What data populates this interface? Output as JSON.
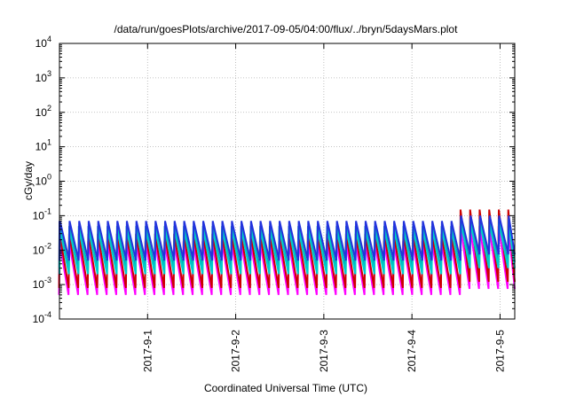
{
  "chart_data": {
    "type": "line",
    "title": "/data/run/goesPlots/archive/2017-09-05/04:00/flux/../bryn/5daysMars.plot",
    "xlabel": "Coordinated Universal Time (UTC)",
    "ylabel": "cGy/day",
    "y_scale": "log",
    "ylim": [
      0.0001,
      10000
    ],
    "xlim": [
      "2017-08-31T00:00",
      "2017-09-05T04:00"
    ],
    "grid": true,
    "legend": "none",
    "x_ticks": [
      "2017-9-1",
      "2017-9-2",
      "2017-9-3",
      "2017-9-4",
      "2017-9-5"
    ],
    "y_ticks": [
      {
        "base": "10",
        "exp": "-4",
        "value": 0.0001
      },
      {
        "base": "10",
        "exp": "-3",
        "value": 0.001
      },
      {
        "base": "10",
        "exp": "-2",
        "value": 0.01
      },
      {
        "base": "10",
        "exp": "-1",
        "value": 0.1
      },
      {
        "base": "10",
        "exp": "0",
        "value": 1
      },
      {
        "base": "10",
        "exp": "1",
        "value": 10
      },
      {
        "base": "10",
        "exp": "2",
        "value": 100
      },
      {
        "base": "10",
        "exp": "3",
        "value": 1000
      },
      {
        "base": "10",
        "exp": "4",
        "value": 10000
      }
    ],
    "pattern": {
      "description_period_hours": 2.6,
      "spike_time_end": "2017-09-04T12:00",
      "spike_time_after": "2017-09-05T04:00"
    },
    "series": [
      {
        "color": "#ff00ff",
        "peak": 0.018,
        "trough": 0.0005,
        "peak_late": 0.05
      },
      {
        "color": "#cc0000",
        "peak": 0.03,
        "trough": 0.0008,
        "peak_late": 0.15
      },
      {
        "color": "#00aaaa",
        "peak": 0.05,
        "trough": 0.003,
        "peak_late": 0.08
      },
      {
        "color": "#00cccc",
        "peak": 0.04,
        "trough": 0.002,
        "peak_late": 0.06
      },
      {
        "color": "#2233dd",
        "peak": 0.07,
        "trough": 0.005,
        "peak_late": 0.1
      }
    ]
  }
}
